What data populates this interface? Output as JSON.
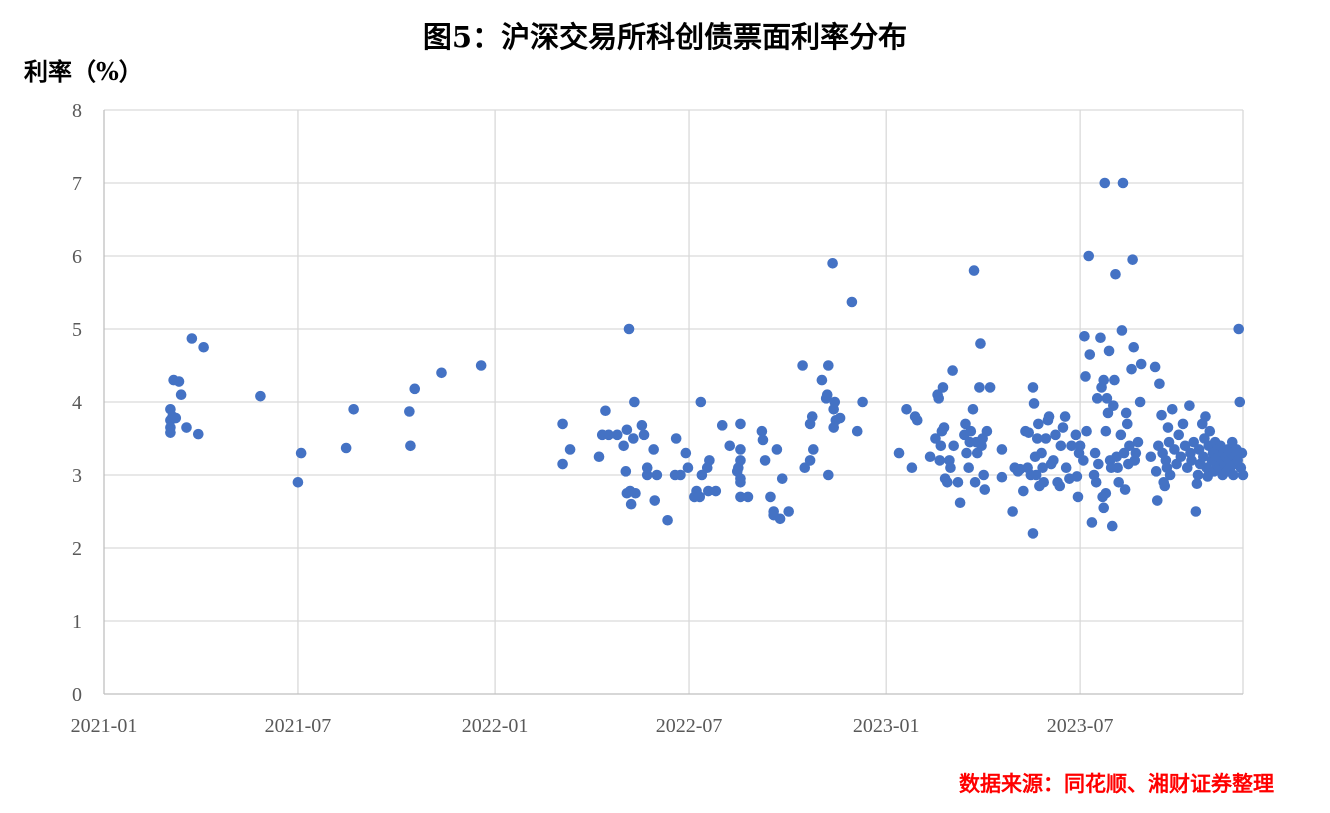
{
  "chart_data": {
    "type": "scatter",
    "title": "图5：沪深交易所科创债票面利率分布",
    "xlabel": "",
    "ylabel": "利率（%）",
    "source": "数据来源：同花顺、湘财证券整理",
    "x_ticks": [
      "2021-01",
      "2021-07",
      "2022-01",
      "2022-07",
      "2023-01",
      "2023-07"
    ],
    "y_ticks": [
      "0",
      "1",
      "2",
      "3",
      "4",
      "5",
      "6",
      "7",
      "8"
    ],
    "xlim": [
      "2021-01-01",
      "2023-11-30"
    ],
    "ylim": [
      0,
      8
    ],
    "grid": true,
    "legend": "none",
    "marker_color": "#4472c4",
    "points": [
      [
        "2021-03-04",
        3.9
      ],
      [
        "2021-03-04",
        3.75
      ],
      [
        "2021-03-04",
        3.65
      ],
      [
        "2021-03-04",
        3.58
      ],
      [
        "2021-03-06",
        3.8
      ],
      [
        "2021-03-07",
        4.3
      ],
      [
        "2021-03-09",
        3.78
      ],
      [
        "2021-03-12",
        4.28
      ],
      [
        "2021-03-14",
        4.1
      ],
      [
        "2021-03-19",
        3.65
      ],
      [
        "2021-03-24",
        4.87
      ],
      [
        "2021-03-30",
        3.56
      ],
      [
        "2021-04-04",
        4.75
      ],
      [
        "2021-05-27",
        4.08
      ],
      [
        "2021-07-01",
        2.9
      ],
      [
        "2021-07-04",
        3.3
      ],
      [
        "2021-08-15",
        3.37
      ],
      [
        "2021-08-22",
        3.9
      ],
      [
        "2021-10-13",
        3.87
      ],
      [
        "2021-10-14",
        3.4
      ],
      [
        "2021-10-18",
        4.18
      ],
      [
        "2021-11-12",
        4.4
      ],
      [
        "2021-12-19",
        4.5
      ],
      [
        "2022-03-05",
        3.7
      ],
      [
        "2022-03-05",
        3.15
      ],
      [
        "2022-03-12",
        3.35
      ],
      [
        "2022-04-08",
        3.25
      ],
      [
        "2022-04-11",
        3.55
      ],
      [
        "2022-04-14",
        3.88
      ],
      [
        "2022-04-17",
        3.55
      ],
      [
        "2022-04-25",
        3.55
      ],
      [
        "2022-05-01",
        3.4
      ],
      [
        "2022-05-03",
        3.05
      ],
      [
        "2022-05-04",
        2.75
      ],
      [
        "2022-05-04",
        3.62
      ],
      [
        "2022-05-06",
        5.0
      ],
      [
        "2022-05-07",
        2.78
      ],
      [
        "2022-05-08",
        2.6
      ],
      [
        "2022-05-10",
        3.5
      ],
      [
        "2022-05-11",
        4.0
      ],
      [
        "2022-05-12",
        2.75
      ],
      [
        "2022-05-18",
        3.68
      ],
      [
        "2022-05-20",
        3.55
      ],
      [
        "2022-05-23",
        3.0
      ],
      [
        "2022-05-23",
        3.1
      ],
      [
        "2022-05-29",
        3.35
      ],
      [
        "2022-05-30",
        2.65
      ],
      [
        "2022-06-01",
        3.0
      ],
      [
        "2022-06-11",
        2.38
      ],
      [
        "2022-06-18",
        3.0
      ],
      [
        "2022-06-19",
        3.5
      ],
      [
        "2022-06-23",
        3.0
      ],
      [
        "2022-06-28",
        3.3
      ],
      [
        "2022-06-30",
        3.1
      ],
      [
        "2022-07-06",
        2.7
      ],
      [
        "2022-07-08",
        2.78
      ],
      [
        "2022-07-11",
        2.7
      ],
      [
        "2022-07-12",
        4.0
      ],
      [
        "2022-07-13",
        3.0
      ],
      [
        "2022-07-18",
        3.1
      ],
      [
        "2022-07-19",
        2.78
      ],
      [
        "2022-07-20",
        3.2
      ],
      [
        "2022-07-26",
        2.78
      ],
      [
        "2022-08-01",
        3.68
      ],
      [
        "2022-08-08",
        3.4
      ],
      [
        "2022-08-15",
        3.05
      ],
      [
        "2022-08-16",
        3.1
      ],
      [
        "2022-08-18",
        3.7
      ],
      [
        "2022-08-18",
        3.35
      ],
      [
        "2022-08-18",
        3.2
      ],
      [
        "2022-08-18",
        2.95
      ],
      [
        "2022-08-18",
        2.9
      ],
      [
        "2022-08-18",
        2.7
      ],
      [
        "2022-08-25",
        2.7
      ],
      [
        "2022-09-07",
        3.6
      ],
      [
        "2022-09-08",
        3.48
      ],
      [
        "2022-09-10",
        3.2
      ],
      [
        "2022-09-15",
        2.7
      ],
      [
        "2022-09-18",
        2.5
      ],
      [
        "2022-09-18",
        2.45
      ],
      [
        "2022-09-21",
        3.35
      ],
      [
        "2022-09-24",
        2.4
      ],
      [
        "2022-09-26",
        2.95
      ],
      [
        "2022-10-02",
        2.5
      ],
      [
        "2022-10-15",
        4.5
      ],
      [
        "2022-10-17",
        3.1
      ],
      [
        "2022-10-22",
        3.2
      ],
      [
        "2022-10-22",
        3.7
      ],
      [
        "2022-10-24",
        3.8
      ],
      [
        "2022-10-25",
        3.35
      ],
      [
        "2022-11-02",
        4.3
      ],
      [
        "2022-11-06",
        4.05
      ],
      [
        "2022-11-07",
        4.1
      ],
      [
        "2022-11-08",
        3.0
      ],
      [
        "2022-11-08",
        4.5
      ],
      [
        "2022-11-12",
        5.9
      ],
      [
        "2022-11-13",
        3.9
      ],
      [
        "2022-11-13",
        3.65
      ],
      [
        "2022-11-14",
        4.0
      ],
      [
        "2022-11-15",
        3.75
      ],
      [
        "2022-11-19",
        3.78
      ],
      [
        "2022-11-30",
        5.37
      ],
      [
        "2022-12-05",
        3.6
      ],
      [
        "2022-12-10",
        4.0
      ],
      [
        "2023-01-13",
        3.3
      ],
      [
        "2023-01-20",
        3.9
      ],
      [
        "2023-01-25",
        3.1
      ],
      [
        "2023-01-28",
        3.8
      ],
      [
        "2023-01-30",
        3.75
      ],
      [
        "2023-02-11",
        3.25
      ],
      [
        "2023-02-16",
        3.5
      ],
      [
        "2023-02-18",
        4.1
      ],
      [
        "2023-02-19",
        4.05
      ],
      [
        "2023-02-20",
        3.2
      ],
      [
        "2023-02-21",
        3.4
      ],
      [
        "2023-02-22",
        3.6
      ],
      [
        "2023-02-23",
        4.2
      ],
      [
        "2023-02-24",
        3.65
      ],
      [
        "2023-02-25",
        2.95
      ],
      [
        "2023-02-27",
        2.9
      ],
      [
        "2023-03-01",
        3.2
      ],
      [
        "2023-03-02",
        3.1
      ],
      [
        "2023-03-04",
        4.43
      ],
      [
        "2023-03-05",
        3.4
      ],
      [
        "2023-03-09",
        2.9
      ],
      [
        "2023-03-11",
        2.62
      ],
      [
        "2023-03-15",
        3.55
      ],
      [
        "2023-03-16",
        3.7
      ],
      [
        "2023-03-17",
        3.3
      ],
      [
        "2023-03-19",
        3.1
      ],
      [
        "2023-03-20",
        3.45
      ],
      [
        "2023-03-21",
        3.6
      ],
      [
        "2023-03-23",
        3.9
      ],
      [
        "2023-03-24",
        5.8
      ],
      [
        "2023-03-25",
        2.9
      ],
      [
        "2023-03-26",
        3.45
      ],
      [
        "2023-03-27",
        3.3
      ],
      [
        "2023-03-29",
        4.2
      ],
      [
        "2023-03-30",
        4.8
      ],
      [
        "2023-03-31",
        3.4
      ],
      [
        "2023-04-01",
        3.5
      ],
      [
        "2023-04-02",
        3.0
      ],
      [
        "2023-04-03",
        2.8
      ],
      [
        "2023-04-05",
        3.6
      ],
      [
        "2023-04-08",
        4.2
      ],
      [
        "2023-04-19",
        3.35
      ],
      [
        "2023-04-19",
        2.97
      ],
      [
        "2023-04-29",
        2.5
      ],
      [
        "2023-05-01",
        3.1
      ],
      [
        "2023-05-04",
        3.05
      ],
      [
        "2023-05-06",
        3.08
      ],
      [
        "2023-05-09",
        2.78
      ],
      [
        "2023-05-11",
        3.6
      ],
      [
        "2023-05-13",
        3.1
      ],
      [
        "2023-05-14",
        3.58
      ],
      [
        "2023-05-16",
        3.0
      ],
      [
        "2023-05-18",
        2.2
      ],
      [
        "2023-05-18",
        4.2
      ],
      [
        "2023-05-19",
        3.98
      ],
      [
        "2023-05-20",
        3.25
      ],
      [
        "2023-05-21",
        3.0
      ],
      [
        "2023-05-22",
        3.5
      ],
      [
        "2023-05-23",
        3.7
      ],
      [
        "2023-05-24",
        2.85
      ],
      [
        "2023-05-26",
        3.3
      ],
      [
        "2023-05-27",
        3.1
      ],
      [
        "2023-05-28",
        2.9
      ],
      [
        "2023-05-30",
        3.5
      ],
      [
        "2023-06-01",
        3.75
      ],
      [
        "2023-06-02",
        3.8
      ],
      [
        "2023-06-04",
        3.15
      ],
      [
        "2023-06-06",
        3.2
      ],
      [
        "2023-06-08",
        3.55
      ],
      [
        "2023-06-10",
        2.9
      ],
      [
        "2023-06-12",
        2.85
      ],
      [
        "2023-06-13",
        3.4
      ],
      [
        "2023-06-15",
        3.65
      ],
      [
        "2023-06-17",
        3.8
      ],
      [
        "2023-06-18",
        3.1
      ],
      [
        "2023-06-21",
        2.95
      ],
      [
        "2023-06-23",
        3.4
      ],
      [
        "2023-06-27",
        3.55
      ],
      [
        "2023-06-28",
        2.98
      ],
      [
        "2023-06-29",
        2.7
      ],
      [
        "2023-06-30",
        3.3
      ],
      [
        "2023-07-01",
        3.4
      ],
      [
        "2023-07-04",
        3.2
      ],
      [
        "2023-07-05",
        4.9
      ],
      [
        "2023-07-06",
        4.35
      ],
      [
        "2023-07-07",
        3.6
      ],
      [
        "2023-07-09",
        6.0
      ],
      [
        "2023-07-10",
        4.65
      ],
      [
        "2023-07-12",
        2.35
      ],
      [
        "2023-07-14",
        3.0
      ],
      [
        "2023-07-15",
        3.3
      ],
      [
        "2023-07-16",
        2.9
      ],
      [
        "2023-07-17",
        4.05
      ],
      [
        "2023-07-18",
        3.15
      ],
      [
        "2023-07-20",
        4.88
      ],
      [
        "2023-07-21",
        4.2
      ],
      [
        "2023-07-22",
        2.7
      ],
      [
        "2023-07-23",
        4.3
      ],
      [
        "2023-07-23",
        2.55
      ],
      [
        "2023-07-24",
        7.0
      ],
      [
        "2023-07-25",
        3.6
      ],
      [
        "2023-07-25",
        2.75
      ],
      [
        "2023-07-26",
        4.05
      ],
      [
        "2023-07-27",
        3.85
      ],
      [
        "2023-07-28",
        4.7
      ],
      [
        "2023-07-29",
        3.2
      ],
      [
        "2023-07-30",
        3.1
      ],
      [
        "2023-07-31",
        2.3
      ],
      [
        "2023-08-01",
        3.95
      ],
      [
        "2023-08-02",
        4.3
      ],
      [
        "2023-08-03",
        5.75
      ],
      [
        "2023-08-04",
        3.25
      ],
      [
        "2023-08-05",
        3.1
      ],
      [
        "2023-08-06",
        2.9
      ],
      [
        "2023-08-08",
        3.55
      ],
      [
        "2023-08-09",
        4.98
      ],
      [
        "2023-08-10",
        7.0
      ],
      [
        "2023-08-11",
        3.3
      ],
      [
        "2023-08-12",
        2.8
      ],
      [
        "2023-08-13",
        3.85
      ],
      [
        "2023-08-14",
        3.7
      ],
      [
        "2023-08-15",
        3.15
      ],
      [
        "2023-08-16",
        3.4
      ],
      [
        "2023-08-18",
        4.45
      ],
      [
        "2023-08-19",
        5.95
      ],
      [
        "2023-08-20",
        4.75
      ],
      [
        "2023-08-21",
        3.2
      ],
      [
        "2023-08-22",
        3.3
      ],
      [
        "2023-08-24",
        3.45
      ],
      [
        "2023-08-26",
        4.0
      ],
      [
        "2023-08-27",
        4.52
      ],
      [
        "2023-09-05",
        3.25
      ],
      [
        "2023-09-09",
        4.48
      ],
      [
        "2023-09-10",
        3.05
      ],
      [
        "2023-09-11",
        2.65
      ],
      [
        "2023-09-12",
        3.4
      ],
      [
        "2023-09-13",
        4.25
      ],
      [
        "2023-09-15",
        3.82
      ],
      [
        "2023-09-16",
        3.3
      ],
      [
        "2023-09-17",
        2.9
      ],
      [
        "2023-09-18",
        2.85
      ],
      [
        "2023-09-19",
        3.2
      ],
      [
        "2023-09-20",
        3.1
      ],
      [
        "2023-09-21",
        3.65
      ],
      [
        "2023-09-22",
        3.45
      ],
      [
        "2023-09-23",
        3.0
      ],
      [
        "2023-09-25",
        3.9
      ],
      [
        "2023-09-27",
        3.35
      ],
      [
        "2023-09-29",
        3.15
      ],
      [
        "2023-10-01",
        3.55
      ],
      [
        "2023-10-03",
        3.25
      ],
      [
        "2023-10-05",
        3.7
      ],
      [
        "2023-10-07",
        3.4
      ],
      [
        "2023-10-09",
        3.1
      ],
      [
        "2023-10-11",
        3.95
      ],
      [
        "2023-10-12",
        3.3
      ],
      [
        "2023-10-13",
        3.2
      ],
      [
        "2023-10-15",
        3.45
      ],
      [
        "2023-10-17",
        2.5
      ],
      [
        "2023-10-18",
        2.88
      ],
      [
        "2023-10-19",
        3.0
      ],
      [
        "2023-10-20",
        3.35
      ],
      [
        "2023-10-21",
        3.15
      ],
      [
        "2023-10-23",
        3.7
      ],
      [
        "2023-10-24",
        3.25
      ],
      [
        "2023-10-25",
        3.5
      ],
      [
        "2023-10-26",
        3.8
      ],
      [
        "2023-10-27",
        3.1
      ],
      [
        "2023-10-28",
        2.98
      ],
      [
        "2023-10-29",
        3.4
      ],
      [
        "2023-10-30",
        3.6
      ],
      [
        "2023-11-01",
        3.2
      ],
      [
        "2023-11-02",
        3.3
      ],
      [
        "2023-11-03",
        3.05
      ],
      [
        "2023-11-04",
        3.45
      ],
      [
        "2023-11-05",
        3.15
      ],
      [
        "2023-11-06",
        3.35
      ],
      [
        "2023-11-07",
        3.25
      ],
      [
        "2023-11-08",
        3.1
      ],
      [
        "2023-11-09",
        3.4
      ],
      [
        "2023-11-10",
        3.2
      ],
      [
        "2023-11-11",
        3.0
      ],
      [
        "2023-11-12",
        3.3
      ],
      [
        "2023-11-13",
        3.15
      ],
      [
        "2023-11-14",
        3.25
      ],
      [
        "2023-11-15",
        3.05
      ],
      [
        "2023-11-16",
        3.35
      ],
      [
        "2023-11-17",
        3.2
      ],
      [
        "2023-11-18",
        3.1
      ],
      [
        "2023-11-19",
        3.3
      ],
      [
        "2023-11-20",
        3.45
      ],
      [
        "2023-11-21",
        3.0
      ],
      [
        "2023-11-22",
        3.25
      ],
      [
        "2023-11-23",
        3.15
      ],
      [
        "2023-11-24",
        3.35
      ],
      [
        "2023-11-25",
        3.2
      ],
      [
        "2023-11-26",
        5.0
      ],
      [
        "2023-11-27",
        4.0
      ],
      [
        "2023-11-28",
        3.1
      ],
      [
        "2023-11-29",
        3.3
      ],
      [
        "2023-11-30",
        3.0
      ]
    ]
  }
}
